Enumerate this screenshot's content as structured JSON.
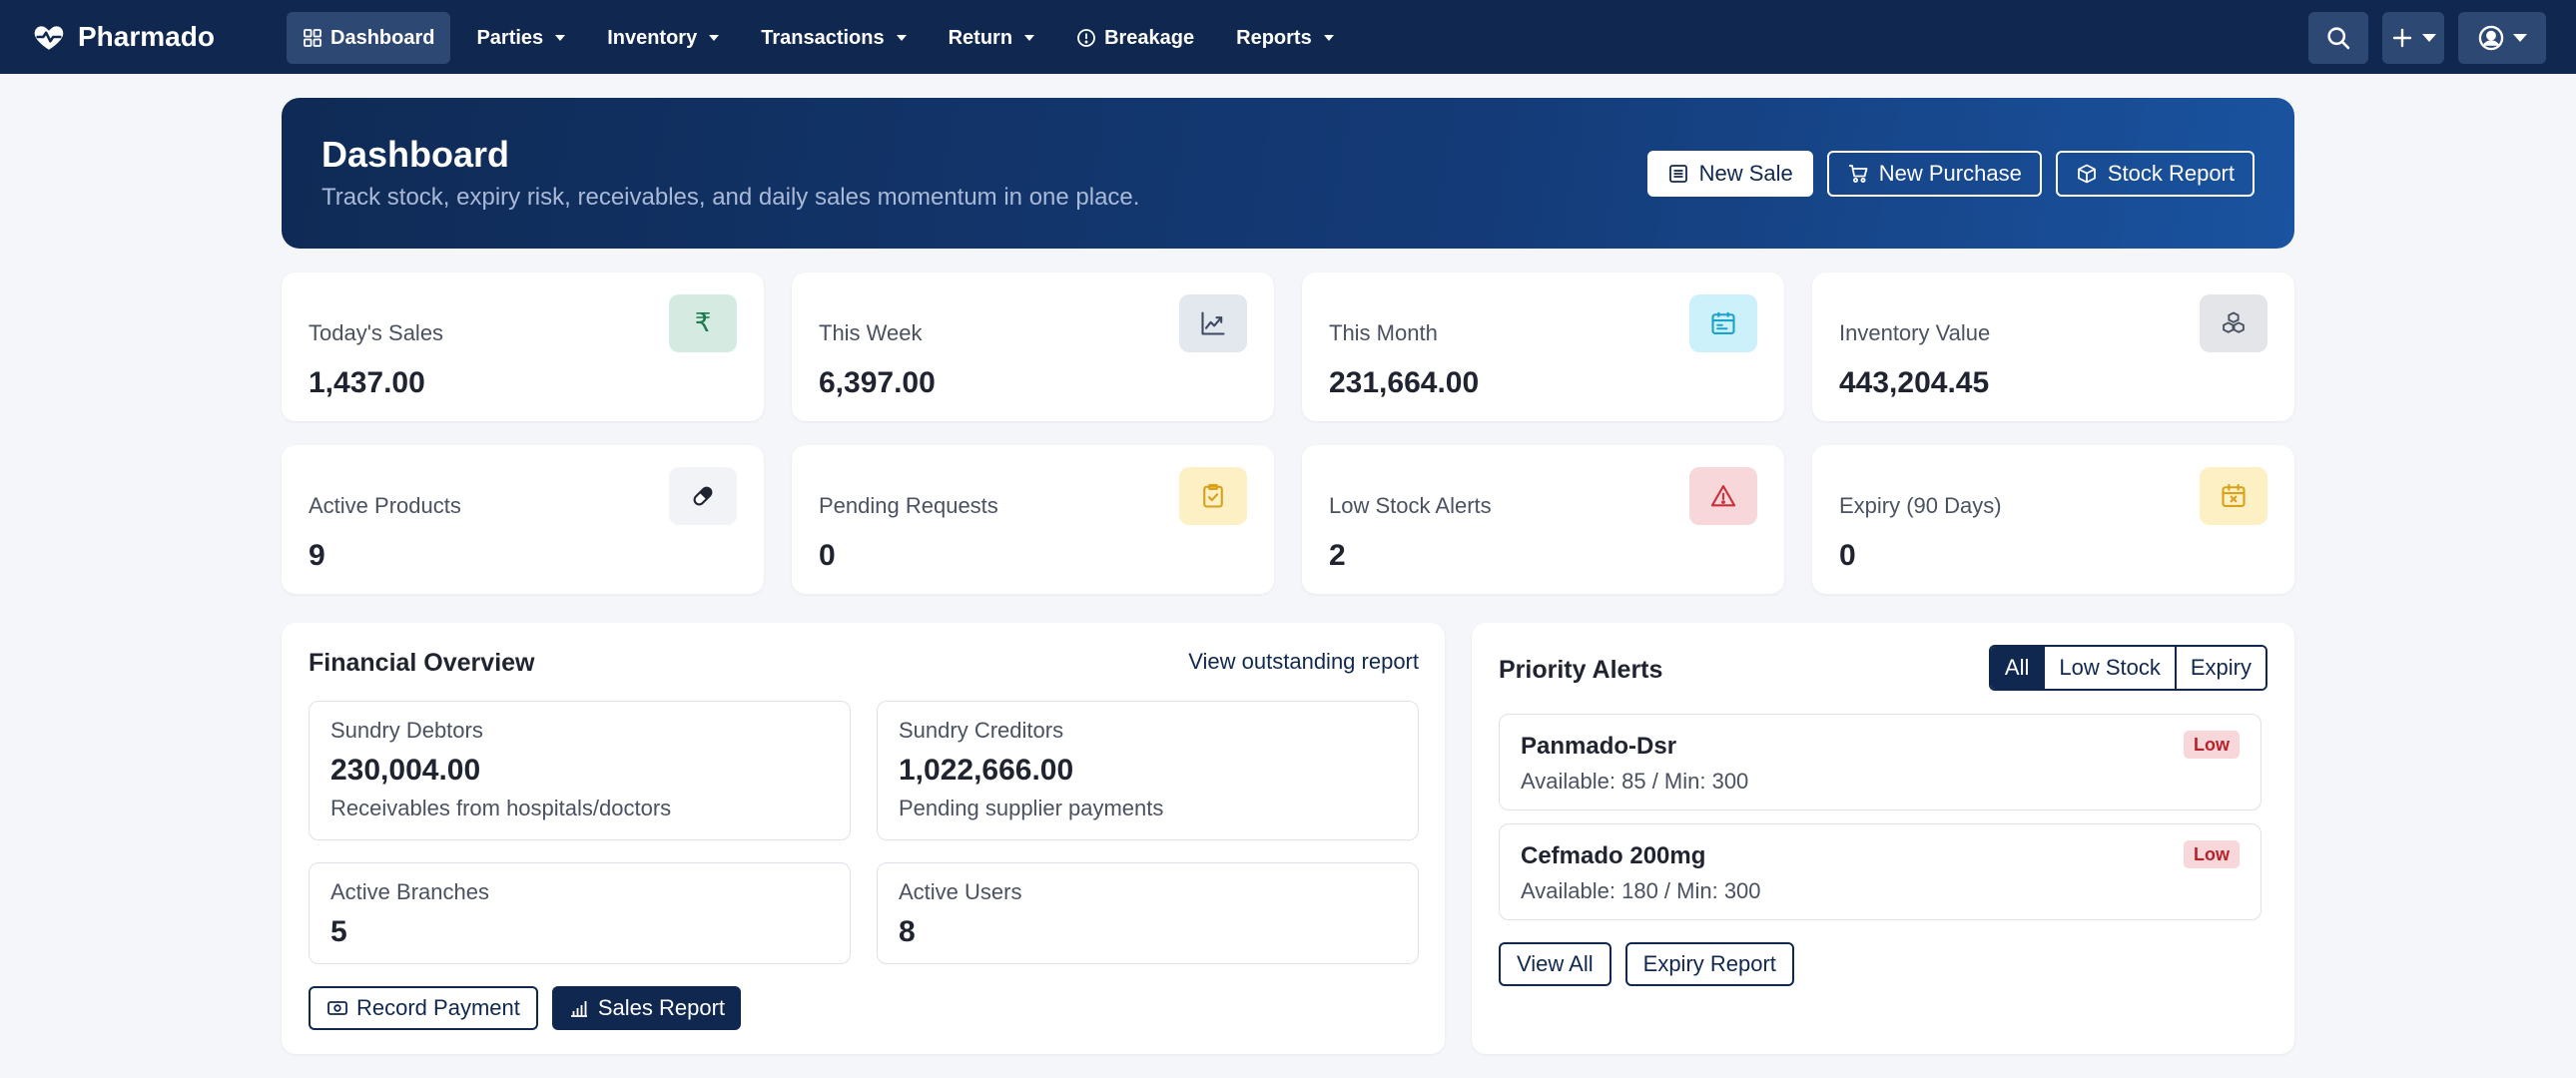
{
  "brand": {
    "name": "Pharmado"
  },
  "nav": {
    "items": [
      {
        "label": "Dashboard",
        "icon": "grid-icon",
        "active": true,
        "dropdown": false
      },
      {
        "label": "Parties",
        "dropdown": true
      },
      {
        "label": "Inventory",
        "dropdown": true
      },
      {
        "label": "Transactions",
        "dropdown": true
      },
      {
        "label": "Return",
        "dropdown": true
      },
      {
        "label": "Breakage",
        "icon": "alert-circle-icon",
        "dropdown": false
      },
      {
        "label": "Reports",
        "dropdown": true
      }
    ],
    "right_buttons": [
      "search-icon",
      "plus-icon",
      "user-circle-icon"
    ]
  },
  "hero": {
    "title": "Dashboard",
    "subtitle": "Track stock, expiry risk, receivables, and daily sales momentum in one place.",
    "actions": {
      "new_sale": "New Sale",
      "new_purchase": "New Purchase",
      "stock_report": "Stock Report"
    }
  },
  "stats": [
    {
      "label": "Today's Sales",
      "value": "1,437.00",
      "icon": "rupee-icon",
      "icon_bg": "#d5ebe1",
      "icon_color": "#1c7a4e"
    },
    {
      "label": "This Week",
      "value": "6,397.00",
      "icon": "chart-line-icon",
      "icon_bg": "#e3e7ee",
      "icon_color": "#3d4a63"
    },
    {
      "label": "This Month",
      "value": "231,664.00",
      "icon": "calendar-icon",
      "icon_bg": "#cdf1fb",
      "icon_color": "#1aa2c8"
    },
    {
      "label": "Inventory Value",
      "value": "443,204.45",
      "icon": "boxes-icon",
      "icon_bg": "#e3e5e9",
      "icon_color": "#4a5160"
    },
    {
      "label": "Active Products",
      "value": "9",
      "icon": "capsule-icon",
      "icon_bg": "#f1f3f6",
      "icon_color": "#1f2430"
    },
    {
      "label": "Pending Requests",
      "value": "0",
      "icon": "clipboard-check-icon",
      "icon_bg": "#fdf0c4",
      "icon_color": "#d9a11a"
    },
    {
      "label": "Low Stock Alerts",
      "value": "2",
      "icon": "warning-triangle-icon",
      "icon_bg": "#f8d7da",
      "icon_color": "#c9303a"
    },
    {
      "label": "Expiry (90 Days)",
      "value": "0",
      "icon": "calendar-x-icon",
      "icon_bg": "#fdf0c4",
      "icon_color": "#d9a11a"
    }
  ],
  "financial": {
    "title": "Financial Overview",
    "link": "View outstanding report",
    "debtors": {
      "label": "Sundry Debtors",
      "value": "230,004.00",
      "note": "Receivables from hospitals/doctors"
    },
    "creditors": {
      "label": "Sundry Creditors",
      "value": "1,022,666.00",
      "note": "Pending supplier payments"
    },
    "branches": {
      "label": "Active Branches",
      "value": "5"
    },
    "users": {
      "label": "Active Users",
      "value": "8"
    },
    "record_payment": "Record Payment",
    "sales_report": "Sales Report"
  },
  "alerts": {
    "title": "Priority Alerts",
    "filters": [
      "All",
      "Low Stock",
      "Expiry"
    ],
    "active_filter": "All",
    "items": [
      {
        "name": "Panmado-Dsr",
        "meta": "Available: 85 / Min: 300",
        "badge": "Low"
      },
      {
        "name": "Cefmado 200mg",
        "meta": "Available: 180 / Min: 300",
        "badge": "Low"
      }
    ],
    "view_all": "View All",
    "expiry_report": "Expiry Report"
  },
  "colors": {
    "navbar": "#10284f",
    "accent": "#10284f",
    "page_bg": "#f4f6f9",
    "badge_bg": "#f8d7da",
    "badge_text": "#b4232a"
  }
}
